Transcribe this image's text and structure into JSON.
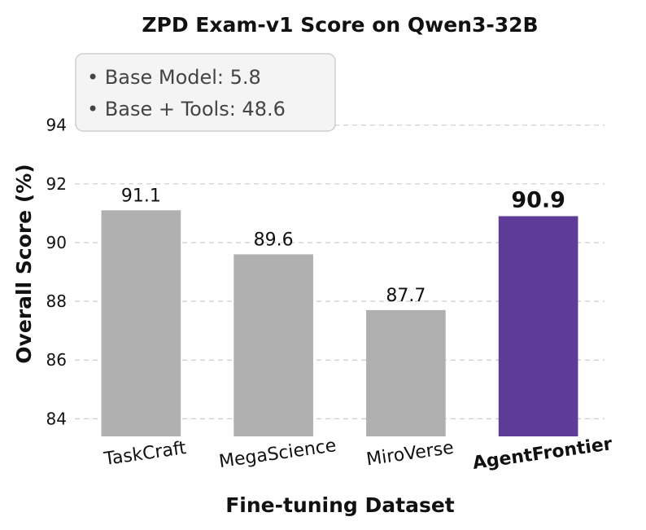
{
  "chart_data": {
    "type": "bar",
    "title": "ZPD Exam-v1 Score on Qwen3-32B",
    "xlabel": "Fine-tuning Dataset",
    "ylabel": "Overall Score (%)",
    "ylim": [
      83.4,
      95.6
    ],
    "yticks": [
      84,
      86,
      88,
      90,
      92,
      94
    ],
    "grid": true,
    "categories": [
      "TaskCraft",
      "MegaScience",
      "MiroVerse",
      "AgentFrontier"
    ],
    "values": [
      91.1,
      89.6,
      87.7,
      90.9
    ],
    "value_labels": [
      "91.1",
      "89.6",
      "87.7",
      "90.9"
    ],
    "highlight_index": 3,
    "colors": {
      "default": "#b0b0b0",
      "highlight": "#5e3b97"
    },
    "annotation": {
      "placement": "top-left",
      "lines": [
        "• Base Model: 5.8",
        "• Base + Tools: 48.6"
      ]
    }
  }
}
